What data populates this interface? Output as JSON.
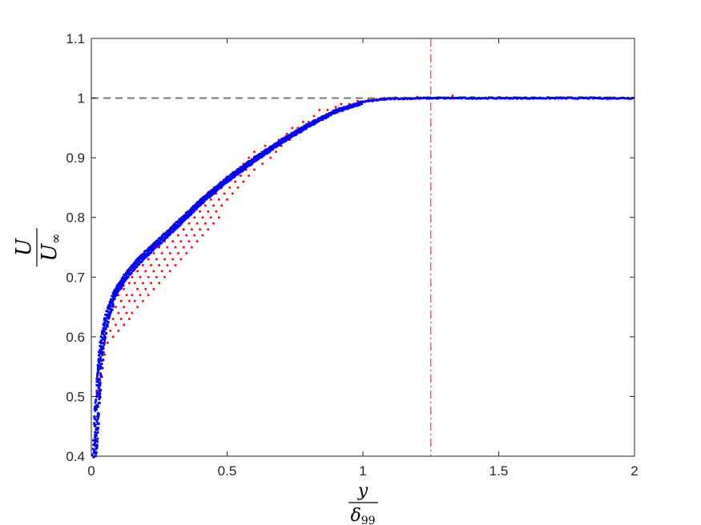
{
  "chart_data": {
    "type": "scatter",
    "title": "",
    "xlabel": {
      "numerator": "y",
      "denominator": "δ",
      "denominator_sub": "99"
    },
    "ylabel": {
      "numerator": "U",
      "denominator": "U",
      "denominator_sub": "∞"
    },
    "xlim": [
      0,
      2
    ],
    "ylim": [
      0.4,
      1.1
    ],
    "xticks": [
      0,
      0.5,
      1,
      1.5,
      2
    ],
    "xtick_labels": [
      "0",
      "0.5",
      "1",
      "1.5",
      "2"
    ],
    "yticks": [
      0.4,
      0.5,
      0.6,
      0.7,
      0.8,
      0.9,
      1,
      1.1
    ],
    "ytick_labels": [
      "0.4",
      "0.5",
      "0.6",
      "0.7",
      "0.8",
      "0.9",
      "1",
      "1.1"
    ],
    "grid": false,
    "reference_lines": [
      {
        "orientation": "horizontal",
        "value": 1.0,
        "style": "dashed",
        "color": "#707070"
      },
      {
        "orientation": "vertical",
        "value": 1.25,
        "style": "dash-dot",
        "color": "#e04040"
      }
    ],
    "series": [
      {
        "color": "#ff0000",
        "marker": "dot",
        "points": [
          [
            0.01,
            0.4
          ],
          [
            0.01,
            0.42
          ],
          [
            0.012,
            0.45
          ],
          [
            0.015,
            0.48
          ],
          [
            0.02,
            0.51
          ],
          [
            0.025,
            0.5
          ],
          [
            0.03,
            0.53
          ],
          [
            0.035,
            0.55
          ],
          [
            0.04,
            0.56
          ],
          [
            0.045,
            0.58
          ],
          [
            0.05,
            0.57
          ],
          [
            0.05,
            0.6
          ],
          [
            0.06,
            0.59
          ],
          [
            0.06,
            0.62
          ],
          [
            0.07,
            0.61
          ],
          [
            0.07,
            0.64
          ],
          [
            0.08,
            0.6
          ],
          [
            0.08,
            0.63
          ],
          [
            0.08,
            0.66
          ],
          [
            0.09,
            0.62
          ],
          [
            0.09,
            0.65
          ],
          [
            0.1,
            0.61
          ],
          [
            0.1,
            0.64
          ],
          [
            0.1,
            0.67
          ],
          [
            0.11,
            0.63
          ],
          [
            0.11,
            0.66
          ],
          [
            0.12,
            0.62
          ],
          [
            0.12,
            0.65
          ],
          [
            0.12,
            0.68
          ],
          [
            0.13,
            0.64
          ],
          [
            0.13,
            0.67
          ],
          [
            0.14,
            0.63
          ],
          [
            0.14,
            0.66
          ],
          [
            0.14,
            0.69
          ],
          [
            0.15,
            0.64
          ],
          [
            0.15,
            0.67
          ],
          [
            0.15,
            0.7
          ],
          [
            0.16,
            0.66
          ],
          [
            0.16,
            0.69
          ],
          [
            0.17,
            0.65
          ],
          [
            0.17,
            0.68
          ],
          [
            0.17,
            0.71
          ],
          [
            0.18,
            0.67
          ],
          [
            0.18,
            0.7
          ],
          [
            0.19,
            0.66
          ],
          [
            0.19,
            0.69
          ],
          [
            0.19,
            0.72
          ],
          [
            0.2,
            0.68
          ],
          [
            0.2,
            0.71
          ],
          [
            0.21,
            0.67
          ],
          [
            0.21,
            0.7
          ],
          [
            0.21,
            0.73
          ],
          [
            0.22,
            0.69
          ],
          [
            0.22,
            0.72
          ],
          [
            0.23,
            0.68
          ],
          [
            0.23,
            0.71
          ],
          [
            0.23,
            0.74
          ],
          [
            0.24,
            0.7
          ],
          [
            0.24,
            0.73
          ],
          [
            0.25,
            0.69
          ],
          [
            0.25,
            0.72
          ],
          [
            0.25,
            0.75
          ],
          [
            0.26,
            0.71
          ],
          [
            0.26,
            0.74
          ],
          [
            0.27,
            0.7
          ],
          [
            0.27,
            0.73
          ],
          [
            0.27,
            0.76
          ],
          [
            0.28,
            0.72
          ],
          [
            0.28,
            0.75
          ],
          [
            0.29,
            0.71
          ],
          [
            0.29,
            0.74
          ],
          [
            0.3,
            0.73
          ],
          [
            0.3,
            0.76
          ],
          [
            0.31,
            0.72
          ],
          [
            0.31,
            0.75
          ],
          [
            0.32,
            0.74
          ],
          [
            0.32,
            0.77
          ],
          [
            0.33,
            0.73
          ],
          [
            0.33,
            0.76
          ],
          [
            0.34,
            0.75
          ],
          [
            0.34,
            0.78
          ],
          [
            0.35,
            0.74
          ],
          [
            0.35,
            0.77
          ],
          [
            0.36,
            0.76
          ],
          [
            0.36,
            0.79
          ],
          [
            0.37,
            0.75
          ],
          [
            0.37,
            0.78
          ],
          [
            0.38,
            0.77
          ],
          [
            0.38,
            0.8
          ],
          [
            0.39,
            0.76
          ],
          [
            0.39,
            0.79
          ],
          [
            0.4,
            0.78
          ],
          [
            0.4,
            0.81
          ],
          [
            0.41,
            0.77
          ],
          [
            0.41,
            0.8
          ],
          [
            0.42,
            0.79
          ],
          [
            0.42,
            0.82
          ],
          [
            0.43,
            0.78
          ],
          [
            0.43,
            0.81
          ],
          [
            0.44,
            0.8
          ],
          [
            0.44,
            0.83
          ],
          [
            0.45,
            0.79
          ],
          [
            0.45,
            0.82
          ],
          [
            0.46,
            0.81
          ],
          [
            0.46,
            0.84
          ],
          [
            0.47,
            0.8
          ],
          [
            0.47,
            0.83
          ],
          [
            0.48,
            0.82
          ],
          [
            0.48,
            0.85
          ],
          [
            0.49,
            0.84
          ],
          [
            0.5,
            0.83
          ],
          [
            0.5,
            0.86
          ],
          [
            0.51,
            0.85
          ],
          [
            0.52,
            0.84
          ],
          [
            0.52,
            0.87
          ],
          [
            0.53,
            0.86
          ],
          [
            0.54,
            0.85
          ],
          [
            0.54,
            0.88
          ],
          [
            0.55,
            0.87
          ],
          [
            0.56,
            0.86
          ],
          [
            0.56,
            0.89
          ],
          [
            0.57,
            0.88
          ],
          [
            0.58,
            0.87
          ],
          [
            0.58,
            0.9
          ],
          [
            0.59,
            0.89
          ],
          [
            0.6,
            0.88
          ],
          [
            0.6,
            0.91
          ],
          [
            0.62,
            0.9
          ],
          [
            0.63,
            0.89
          ],
          [
            0.64,
            0.92
          ],
          [
            0.65,
            0.91
          ],
          [
            0.66,
            0.9
          ],
          [
            0.67,
            0.92
          ],
          [
            0.68,
            0.91
          ],
          [
            0.69,
            0.93
          ],
          [
            0.7,
            0.92
          ],
          [
            0.72,
            0.94
          ],
          [
            0.73,
            0.93
          ],
          [
            0.74,
            0.95
          ],
          [
            0.75,
            0.94
          ],
          [
            0.76,
            0.95
          ],
          [
            0.78,
            0.96
          ],
          [
            0.79,
            0.95
          ],
          [
            0.8,
            0.96
          ],
          [
            0.82,
            0.97
          ],
          [
            0.83,
            0.96
          ],
          [
            0.84,
            0.98
          ],
          [
            0.86,
            0.97
          ],
          [
            0.87,
            0.98
          ],
          [
            0.88,
            0.975
          ],
          [
            0.9,
            0.985
          ],
          [
            0.92,
            0.99
          ],
          [
            0.95,
            0.99
          ],
          [
            0.98,
            0.995
          ],
          [
            1.02,
            0.997
          ],
          [
            1.05,
            0.998
          ],
          [
            1.08,
            1.0
          ],
          [
            1.1,
            0.998
          ],
          [
            1.12,
            1.001
          ],
          [
            1.15,
            1.0
          ],
          [
            1.18,
            0.999
          ],
          [
            1.2,
            1.002
          ],
          [
            1.25,
            1.0
          ],
          [
            1.28,
            1.001
          ],
          [
            1.3,
            0.999
          ],
          [
            1.33,
            1.004
          ],
          [
            1.36,
            1.0
          ],
          [
            1.4,
            0.999
          ],
          [
            1.45,
            1.0
          ],
          [
            1.5,
            1.0
          ],
          [
            1.55,
            0.999
          ],
          [
            1.6,
            1.0
          ],
          [
            1.65,
            1.0
          ],
          [
            1.7,
            1.0
          ],
          [
            1.75,
            0.999
          ],
          [
            1.8,
            1.0
          ],
          [
            1.85,
            1.0
          ],
          [
            1.9,
            0.998
          ],
          [
            1.95,
            1.0
          ]
        ]
      },
      {
        "color": "#0000ff",
        "marker": "dot",
        "curve": [
          [
            0.003,
            0.4
          ],
          [
            0.01,
            0.46
          ],
          [
            0.02,
            0.53
          ],
          [
            0.03,
            0.585
          ],
          [
            0.05,
            0.635
          ],
          [
            0.08,
            0.673
          ],
          [
            0.12,
            0.703
          ],
          [
            0.17,
            0.73
          ],
          [
            0.22,
            0.752
          ],
          [
            0.28,
            0.777
          ],
          [
            0.35,
            0.807
          ],
          [
            0.42,
            0.837
          ],
          [
            0.5,
            0.867
          ],
          [
            0.6,
            0.9
          ],
          [
            0.7,
            0.93
          ],
          [
            0.8,
            0.957
          ],
          [
            0.9,
            0.98
          ],
          [
            1.0,
            0.994
          ],
          [
            1.1,
            0.999
          ],
          [
            1.25,
            1.0
          ],
          [
            1.5,
            1.0
          ],
          [
            1.75,
            1.0
          ],
          [
            2.0,
            1.0
          ]
        ],
        "band_width": 0.012
      }
    ]
  }
}
